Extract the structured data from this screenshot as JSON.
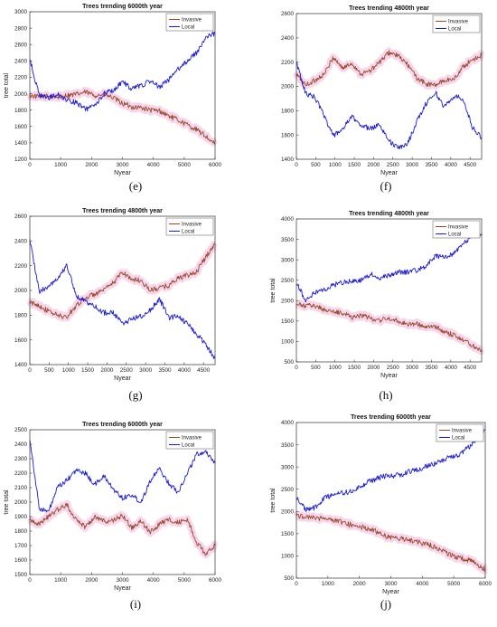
{
  "colors": {
    "invasive": "#9b4a2a",
    "local": "#1c1cd6",
    "axis": "#333333",
    "glow": "#f3c8e6"
  },
  "chart_data": [
    {
      "id": "e",
      "type": "line",
      "panel_label": "(e)",
      "title": "Trees trending 6000th year",
      "xlabel": "Nyear",
      "ylabel": "tree total",
      "xlim": [
        0,
        6000
      ],
      "ylim": [
        1200,
        3000
      ],
      "xticks": [
        "0",
        "1000",
        "2000",
        "3000",
        "4000",
        "5000",
        "6000"
      ],
      "yticks": [
        "1200",
        "1400",
        "1600",
        "1800",
        "2000",
        "2200",
        "2400",
        "2600",
        "2800",
        "3000"
      ],
      "legend_position": "top-right",
      "series": [
        {
          "name": "Invasive",
          "color": "invasive",
          "x": [
            0,
            300,
            600,
            900,
            1200,
            1500,
            1800,
            2100,
            2400,
            2700,
            3000,
            3300,
            3600,
            3900,
            4200,
            4500,
            4800,
            5100,
            5400,
            5700,
            6000
          ],
          "values": [
            1980,
            1960,
            1970,
            1960,
            1980,
            1990,
            2020,
            1980,
            1990,
            1950,
            1880,
            1840,
            1830,
            1800,
            1790,
            1730,
            1680,
            1620,
            1560,
            1480,
            1380
          ]
        },
        {
          "name": "Local",
          "color": "local",
          "x": [
            0,
            300,
            600,
            900,
            1200,
            1500,
            1800,
            2100,
            2400,
            2700,
            3000,
            3300,
            3600,
            3900,
            4200,
            4500,
            4800,
            5100,
            5400,
            5700,
            6000
          ],
          "values": [
            2420,
            1980,
            1950,
            1990,
            1920,
            1890,
            1810,
            1850,
            2000,
            2040,
            2150,
            2060,
            2100,
            2150,
            2080,
            2170,
            2300,
            2400,
            2500,
            2680,
            2740
          ]
        }
      ]
    },
    {
      "id": "f",
      "type": "line",
      "panel_label": "(f)",
      "title": "Trees trending 4800th year",
      "xlabel": "Nyear",
      "ylabel": "",
      "xlim": [
        0,
        4800
      ],
      "ylim": [
        1400,
        2600
      ],
      "xticks": [
        "0",
        "500",
        "1000",
        "1500",
        "2000",
        "2500",
        "3000",
        "3500",
        "4000",
        "4500"
      ],
      "yticks": [
        "1400",
        "1600",
        "1800",
        "2000",
        "2200",
        "2400",
        "2600"
      ],
      "legend_position": "top-right",
      "series": [
        {
          "name": "Invasive",
          "color": "invasive",
          "x": [
            0,
            240,
            480,
            720,
            960,
            1200,
            1440,
            1680,
            1920,
            2160,
            2400,
            2640,
            2880,
            3120,
            3360,
            3600,
            3840,
            4080,
            4320,
            4560,
            4800
          ],
          "values": [
            2100,
            2010,
            2050,
            2100,
            2240,
            2150,
            2190,
            2100,
            2130,
            2200,
            2280,
            2250,
            2180,
            2070,
            2020,
            2010,
            2050,
            2060,
            2160,
            2220,
            2260
          ]
        },
        {
          "name": "Local",
          "color": "local",
          "x": [
            0,
            240,
            480,
            720,
            960,
            1200,
            1440,
            1680,
            1920,
            2160,
            2400,
            2640,
            2880,
            3120,
            3360,
            3600,
            3840,
            4080,
            4320,
            4560,
            4800
          ],
          "values": [
            2200,
            1940,
            1910,
            1760,
            1590,
            1650,
            1750,
            1680,
            1650,
            1690,
            1550,
            1490,
            1530,
            1710,
            1860,
            1950,
            1830,
            1920,
            1900,
            1660,
            1580
          ]
        }
      ]
    },
    {
      "id": "g",
      "type": "line",
      "panel_label": "(g)",
      "title": "Trees trending 4800th year",
      "xlabel": "Nyear",
      "ylabel": "",
      "xlim": [
        0,
        4800
      ],
      "ylim": [
        1400,
        2600
      ],
      "xticks": [
        "0",
        "500",
        "1000",
        "1500",
        "2000",
        "2500",
        "3000",
        "3500",
        "4000",
        "4500"
      ],
      "yticks": [
        "1400",
        "1600",
        "1800",
        "2000",
        "2200",
        "2400",
        "2600"
      ],
      "legend_position": "top-right",
      "series": [
        {
          "name": "Invasive",
          "color": "invasive",
          "x": [
            0,
            240,
            480,
            720,
            960,
            1200,
            1440,
            1680,
            1920,
            2160,
            2400,
            2640,
            2880,
            3120,
            3360,
            3600,
            3840,
            4080,
            4320,
            4560,
            4800
          ],
          "values": [
            1900,
            1880,
            1830,
            1800,
            1780,
            1880,
            1940,
            1970,
            2000,
            2060,
            2150,
            2090,
            2080,
            2000,
            2020,
            2040,
            2100,
            2120,
            2150,
            2270,
            2380
          ]
        },
        {
          "name": "Local",
          "color": "local",
          "x": [
            0,
            240,
            480,
            720,
            960,
            1200,
            1440,
            1680,
            1920,
            2160,
            2400,
            2640,
            2880,
            3120,
            3360,
            3600,
            3840,
            4080,
            4320,
            4560,
            4800
          ],
          "values": [
            2420,
            1990,
            2030,
            2100,
            2200,
            1960,
            1910,
            1870,
            1820,
            1820,
            1730,
            1770,
            1790,
            1840,
            1930,
            1780,
            1790,
            1730,
            1650,
            1560,
            1450
          ]
        }
      ]
    },
    {
      "id": "h",
      "type": "line",
      "panel_label": "(h)",
      "title": "Trees trending 4800th year",
      "xlabel": "Nyear",
      "ylabel": "tree total",
      "xlim": [
        0,
        4800
      ],
      "ylim": [
        500,
        4000
      ],
      "xticks": [
        "0",
        "500",
        "1000",
        "1500",
        "2000",
        "2500",
        "3000",
        "3500",
        "4000",
        "4500"
      ],
      "yticks": [
        "500",
        "1000",
        "1500",
        "2000",
        "2500",
        "3000",
        "3500",
        "4000"
      ],
      "legend_position": "top-right",
      "series": [
        {
          "name": "Invasive",
          "color": "invasive",
          "x": [
            0,
            240,
            480,
            720,
            960,
            1200,
            1440,
            1680,
            1920,
            2160,
            2400,
            2640,
            2880,
            3120,
            3360,
            3600,
            3840,
            4080,
            4320,
            4560,
            4800
          ],
          "values": [
            1900,
            1870,
            1880,
            1780,
            1720,
            1700,
            1600,
            1640,
            1570,
            1520,
            1560,
            1500,
            1430,
            1430,
            1350,
            1360,
            1230,
            1160,
            1050,
            900,
            800
          ]
        },
        {
          "name": "Local",
          "color": "local",
          "x": [
            0,
            240,
            480,
            720,
            960,
            1200,
            1440,
            1680,
            1920,
            2160,
            2400,
            2640,
            2880,
            3120,
            3360,
            3600,
            3840,
            4080,
            4320,
            4560,
            4800
          ],
          "values": [
            2450,
            2000,
            2200,
            2250,
            2380,
            2450,
            2470,
            2500,
            2650,
            2560,
            2620,
            2700,
            2700,
            2750,
            2850,
            3100,
            3050,
            3150,
            3400,
            3550,
            3650
          ]
        }
      ]
    },
    {
      "id": "i",
      "type": "line",
      "panel_label": "(i)",
      "title": "Trees trending 6000th year",
      "xlabel": "Nyear",
      "ylabel": "tree total",
      "xlim": [
        0,
        6000
      ],
      "ylim": [
        1500,
        2500
      ],
      "xticks": [
        "0",
        "1000",
        "2000",
        "3000",
        "4000",
        "5000",
        "6000"
      ],
      "yticks": [
        "1500",
        "1600",
        "1700",
        "1800",
        "1900",
        "2000",
        "2100",
        "2200",
        "2300",
        "2400",
        "2500"
      ],
      "legend_position": "top-right",
      "series": [
        {
          "name": "Invasive",
          "color": "invasive",
          "x": [
            0,
            300,
            600,
            900,
            1200,
            1500,
            1800,
            2100,
            2400,
            2700,
            3000,
            3300,
            3600,
            3900,
            4200,
            4500,
            4800,
            5100,
            5400,
            5700,
            6000
          ],
          "values": [
            1880,
            1850,
            1900,
            1950,
            1980,
            1880,
            1830,
            1900,
            1870,
            1870,
            1910,
            1820,
            1870,
            1790,
            1850,
            1880,
            1860,
            1880,
            1720,
            1640,
            1700
          ]
        },
        {
          "name": "Local",
          "color": "local",
          "x": [
            0,
            300,
            600,
            900,
            1200,
            1500,
            1800,
            2100,
            2400,
            2700,
            3000,
            3300,
            3600,
            3900,
            4200,
            4500,
            4800,
            5100,
            5400,
            5700,
            6000
          ],
          "values": [
            2440,
            1960,
            1930,
            2100,
            2150,
            2220,
            2200,
            2120,
            2180,
            2090,
            2030,
            2050,
            2000,
            2150,
            2230,
            2130,
            2070,
            2200,
            2330,
            2350,
            2270
          ]
        }
      ]
    },
    {
      "id": "j",
      "type": "line",
      "panel_label": "(j)",
      "title": "Trees trending 6000th year",
      "xlabel": "Nyear",
      "ylabel": "tree total",
      "xlim": [
        0,
        6000
      ],
      "ylim": [
        500,
        4000
      ],
      "xticks": [
        "0",
        "1000",
        "2000",
        "3000",
        "4000",
        "5000",
        "6000"
      ],
      "yticks": [
        "500",
        "1000",
        "1500",
        "2000",
        "2500",
        "3000",
        "3500",
        "4000"
      ],
      "legend_position": "top-right",
      "series": [
        {
          "name": "Invasive",
          "color": "invasive",
          "x": [
            0,
            300,
            600,
            900,
            1200,
            1500,
            1800,
            2100,
            2400,
            2700,
            3000,
            3300,
            3600,
            3900,
            4200,
            4500,
            4800,
            5100,
            5400,
            5700,
            6000
          ],
          "values": [
            1900,
            1890,
            1850,
            1860,
            1800,
            1750,
            1680,
            1640,
            1600,
            1480,
            1420,
            1380,
            1360,
            1310,
            1250,
            1170,
            1060,
            970,
            920,
            850,
            680
          ]
        },
        {
          "name": "Local",
          "color": "local",
          "x": [
            0,
            300,
            600,
            900,
            1200,
            1500,
            1800,
            2100,
            2400,
            2700,
            3000,
            3300,
            3600,
            3900,
            4200,
            4500,
            4800,
            5100,
            5400,
            5700,
            6000
          ],
          "values": [
            2300,
            2050,
            2080,
            2300,
            2400,
            2420,
            2450,
            2600,
            2700,
            2780,
            2800,
            2820,
            2900,
            2950,
            3030,
            3100,
            3200,
            3250,
            3400,
            3600,
            3850
          ]
        }
      ]
    }
  ]
}
